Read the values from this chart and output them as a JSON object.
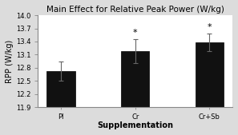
{
  "title": "Main Effect for Relative Peak Power (W/kg)",
  "xlabel": "Supplementation",
  "ylabel": "RPP (W/kg)",
  "categories": [
    "Pl",
    "Cr",
    "Cr+Sb"
  ],
  "values": [
    12.72,
    13.18,
    13.38
  ],
  "errors": [
    0.22,
    0.28,
    0.2
  ],
  "bar_color": "#111111",
  "bar_width": 0.38,
  "ylim": [
    11.9,
    14.0
  ],
  "yticks": [
    11.9,
    12.2,
    12.5,
    12.8,
    13.1,
    13.4,
    13.7,
    14.0
  ],
  "significance": [
    false,
    true,
    true
  ],
  "background_color": "#dcdcdc",
  "plot_bg_color": "#ffffff",
  "title_fontsize": 7.5,
  "axis_label_fontsize": 7,
  "tick_fontsize": 6.0,
  "star_fontsize": 8
}
